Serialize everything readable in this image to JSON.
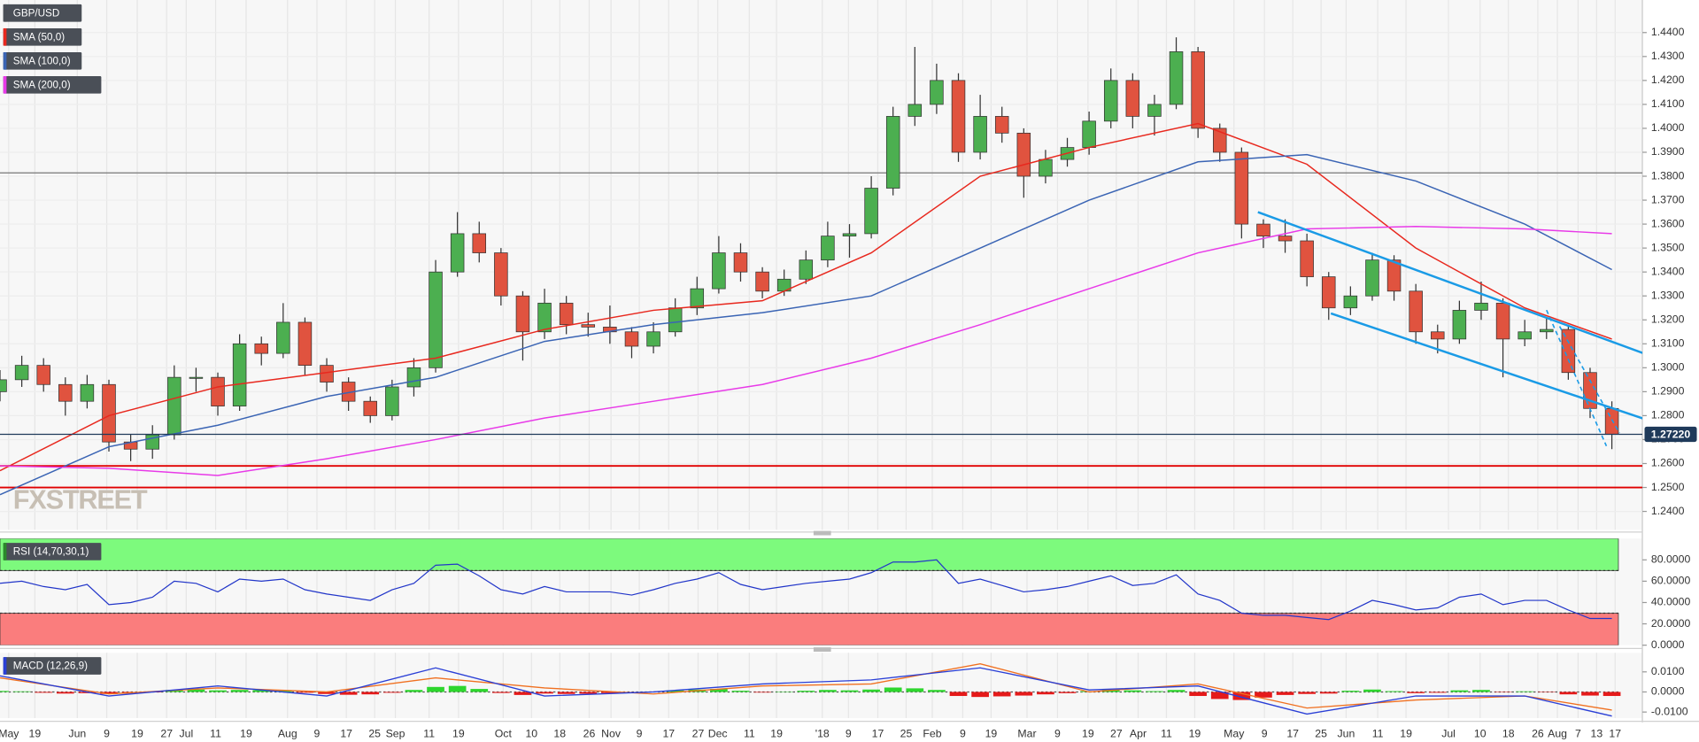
{
  "chart_data": {
    "type": "candlestick",
    "instrument": "GBP/USD",
    "watermark": "FXSTREET",
    "up_color": "#4caf50",
    "down_color": "#e0533f",
    "candles": [
      [
        1.29,
        1.299,
        1.286,
        1.295
      ],
      [
        1.295,
        1.305,
        1.292,
        1.301
      ],
      [
        1.301,
        1.304,
        1.29,
        1.293
      ],
      [
        1.293,
        1.296,
        1.28,
        1.286
      ],
      [
        1.286,
        1.297,
        1.283,
        1.293
      ],
      [
        1.293,
        1.295,
        1.265,
        1.269
      ],
      [
        1.269,
        1.272,
        1.261,
        1.266
      ],
      [
        1.266,
        1.276,
        1.262,
        1.272
      ],
      [
        1.272,
        1.301,
        1.27,
        1.296
      ],
      [
        1.296,
        1.3,
        1.29,
        1.296
      ],
      [
        1.296,
        1.298,
        1.28,
        1.284
      ],
      [
        1.284,
        1.314,
        1.282,
        1.31
      ],
      [
        1.31,
        1.313,
        1.301,
        1.306
      ],
      [
        1.306,
        1.327,
        1.304,
        1.319
      ],
      [
        1.319,
        1.321,
        1.297,
        1.301
      ],
      [
        1.301,
        1.304,
        1.29,
        1.294
      ],
      [
        1.294,
        1.296,
        1.282,
        1.286
      ],
      [
        1.286,
        1.288,
        1.277,
        1.28
      ],
      [
        1.28,
        1.295,
        1.278,
        1.292
      ],
      [
        1.292,
        1.304,
        1.288,
        1.3
      ],
      [
        1.3,
        1.345,
        1.298,
        1.34
      ],
      [
        1.34,
        1.365,
        1.338,
        1.356
      ],
      [
        1.356,
        1.361,
        1.344,
        1.348
      ],
      [
        1.348,
        1.35,
        1.326,
        1.33
      ],
      [
        1.33,
        1.332,
        1.303,
        1.315
      ],
      [
        1.315,
        1.333,
        1.312,
        1.327
      ],
      [
        1.327,
        1.33,
        1.314,
        1.318
      ],
      [
        1.318,
        1.323,
        1.313,
        1.317
      ],
      [
        1.317,
        1.326,
        1.31,
        1.315
      ],
      [
        1.315,
        1.317,
        1.304,
        1.309
      ],
      [
        1.309,
        1.319,
        1.306,
        1.315
      ],
      [
        1.315,
        1.329,
        1.313,
        1.325
      ],
      [
        1.325,
        1.338,
        1.322,
        1.333
      ],
      [
        1.333,
        1.355,
        1.331,
        1.348
      ],
      [
        1.348,
        1.352,
        1.336,
        1.34
      ],
      [
        1.34,
        1.342,
        1.329,
        1.332
      ],
      [
        1.332,
        1.341,
        1.33,
        1.337
      ],
      [
        1.337,
        1.349,
        1.335,
        1.345
      ],
      [
        1.345,
        1.361,
        1.342,
        1.355
      ],
      [
        1.355,
        1.36,
        1.346,
        1.356
      ],
      [
        1.356,
        1.38,
        1.354,
        1.375
      ],
      [
        1.375,
        1.409,
        1.372,
        1.405
      ],
      [
        1.405,
        1.434,
        1.401,
        1.41
      ],
      [
        1.41,
        1.427,
        1.406,
        1.42
      ],
      [
        1.42,
        1.423,
        1.386,
        1.39
      ],
      [
        1.39,
        1.414,
        1.387,
        1.405
      ],
      [
        1.405,
        1.409,
        1.394,
        1.398
      ],
      [
        1.398,
        1.4,
        1.371,
        1.38
      ],
      [
        1.38,
        1.391,
        1.377,
        1.387
      ],
      [
        1.387,
        1.396,
        1.384,
        1.392
      ],
      [
        1.392,
        1.407,
        1.389,
        1.403
      ],
      [
        1.403,
        1.425,
        1.4,
        1.42
      ],
      [
        1.42,
        1.423,
        1.4,
        1.405
      ],
      [
        1.405,
        1.414,
        1.397,
        1.41
      ],
      [
        1.41,
        1.438,
        1.408,
        1.432
      ],
      [
        1.432,
        1.434,
        1.396,
        1.4
      ],
      [
        1.4,
        1.402,
        1.386,
        1.39
      ],
      [
        1.39,
        1.392,
        1.354,
        1.36
      ],
      [
        1.36,
        1.362,
        1.35,
        1.355
      ],
      [
        1.355,
        1.362,
        1.348,
        1.353
      ],
      [
        1.353,
        1.356,
        1.334,
        1.338
      ],
      [
        1.338,
        1.34,
        1.32,
        1.325
      ],
      [
        1.325,
        1.334,
        1.322,
        1.33
      ],
      [
        1.33,
        1.348,
        1.328,
        1.345
      ],
      [
        1.345,
        1.347,
        1.328,
        1.332
      ],
      [
        1.332,
        1.335,
        1.31,
        1.315
      ],
      [
        1.315,
        1.318,
        1.306,
        1.312
      ],
      [
        1.312,
        1.328,
        1.31,
        1.324
      ],
      [
        1.324,
        1.336,
        1.32,
        1.327
      ],
      [
        1.327,
        1.329,
        1.296,
        1.312
      ],
      [
        1.312,
        1.32,
        1.309,
        1.315
      ],
      [
        1.315,
        1.321,
        1.312,
        1.316
      ],
      [
        1.316,
        1.318,
        1.295,
        1.298
      ],
      [
        1.298,
        1.3,
        1.279,
        1.283
      ],
      [
        1.283,
        1.286,
        1.266,
        1.2722
      ]
    ],
    "xlim": [
      0,
      75.4
    ],
    "ylim": [
      1.2323,
      1.4536
    ],
    "yticks": [
      {
        "value": 1.24,
        "label": "1.2400"
      },
      {
        "value": 1.25,
        "label": "1.2500"
      },
      {
        "value": 1.26,
        "label": "1.2600"
      },
      {
        "value": 1.27,
        "label": "1.2700"
      },
      {
        "value": 1.28,
        "label": "1.2800"
      },
      {
        "value": 1.29,
        "label": "1.2900"
      },
      {
        "value": 1.3,
        "label": "1.3000"
      },
      {
        "value": 1.31,
        "label": "1.3100"
      },
      {
        "value": 1.32,
        "label": "1.3200"
      },
      {
        "value": 1.33,
        "label": "1.3300"
      },
      {
        "value": 1.34,
        "label": "1.3400"
      },
      {
        "value": 1.35,
        "label": "1.3500"
      },
      {
        "value": 1.36,
        "label": "1.3600"
      },
      {
        "value": 1.37,
        "label": "1.3700"
      },
      {
        "value": 1.38,
        "label": "1.3800"
      },
      {
        "value": 1.39,
        "label": "1.3900"
      },
      {
        "value": 1.4,
        "label": "1.4000"
      },
      {
        "value": 1.41,
        "label": "1.4100"
      },
      {
        "value": 1.42,
        "label": "1.4200"
      },
      {
        "value": 1.43,
        "label": "1.4300"
      },
      {
        "value": 1.44,
        "label": "1.4400"
      }
    ],
    "xticks": [
      {
        "value": 0.4,
        "label": "May"
      },
      {
        "value": 1.6,
        "label": "19"
      },
      {
        "value": 3.55,
        "label": "Jun"
      },
      {
        "value": 4.9,
        "label": "9"
      },
      {
        "value": 6.3,
        "label": "19"
      },
      {
        "value": 7.65,
        "label": "27"
      },
      {
        "value": 8.55,
        "label": "Jul"
      },
      {
        "value": 9.9,
        "label": "11"
      },
      {
        "value": 11.3,
        "label": "19"
      },
      {
        "value": 13.2,
        "label": "Aug"
      },
      {
        "value": 14.55,
        "label": "9"
      },
      {
        "value": 15.9,
        "label": "17"
      },
      {
        "value": 17.2,
        "label": "25"
      },
      {
        "value": 18.15,
        "label": "Sep"
      },
      {
        "value": 19.7,
        "label": "11"
      },
      {
        "value": 21.05,
        "label": "19"
      },
      {
        "value": 23.1,
        "label": "Oct"
      },
      {
        "value": 24.4,
        "label": "10"
      },
      {
        "value": 25.7,
        "label": "18"
      },
      {
        "value": 27.05,
        "label": "26"
      },
      {
        "value": 28.05,
        "label": "Nov"
      },
      {
        "value": 29.35,
        "label": "9"
      },
      {
        "value": 30.7,
        "label": "17"
      },
      {
        "value": 32.05,
        "label": "27"
      },
      {
        "value": 32.95,
        "label": "Dec"
      },
      {
        "value": 34.4,
        "label": "11"
      },
      {
        "value": 35.65,
        "label": "19"
      },
      {
        "value": 37.75,
        "label": "'18"
      },
      {
        "value": 38.95,
        "label": "9"
      },
      {
        "value": 40.3,
        "label": "17"
      },
      {
        "value": 41.6,
        "label": "25"
      },
      {
        "value": 42.8,
        "label": "Feb"
      },
      {
        "value": 44.2,
        "label": "9"
      },
      {
        "value": 45.5,
        "label": "19"
      },
      {
        "value": 47.15,
        "label": "Mar"
      },
      {
        "value": 48.55,
        "label": "9"
      },
      {
        "value": 49.95,
        "label": "19"
      },
      {
        "value": 51.25,
        "label": "27"
      },
      {
        "value": 52.25,
        "label": "Apr"
      },
      {
        "value": 53.55,
        "label": "11"
      },
      {
        "value": 54.85,
        "label": "19"
      },
      {
        "value": 56.65,
        "label": "May"
      },
      {
        "value": 58.05,
        "label": "9"
      },
      {
        "value": 59.35,
        "label": "17"
      },
      {
        "value": 60.65,
        "label": "25"
      },
      {
        "value": 61.8,
        "label": "Jun"
      },
      {
        "value": 63.25,
        "label": "11"
      },
      {
        "value": 64.55,
        "label": "19"
      },
      {
        "value": 66.5,
        "label": "Jul"
      },
      {
        "value": 67.95,
        "label": "10"
      },
      {
        "value": 69.25,
        "label": "18"
      },
      {
        "value": 70.6,
        "label": "26"
      },
      {
        "value": 71.5,
        "label": "Aug"
      },
      {
        "value": 72.45,
        "label": "7"
      },
      {
        "value": 73.3,
        "label": "13"
      },
      {
        "value": 74.15,
        "label": "17"
      }
    ],
    "moving_averages": [
      {
        "name": "SMA (50,0)",
        "color": "#e8281e",
        "x": [
          0,
          5,
          10,
          15,
          20,
          25,
          30,
          35,
          40,
          45,
          50,
          55,
          60,
          65,
          70,
          74
        ],
        "values": [
          1.257,
          1.28,
          1.292,
          1.298,
          1.304,
          1.316,
          1.324,
          1.328,
          1.348,
          1.38,
          1.392,
          1.402,
          1.385,
          1.35,
          1.325,
          1.312
        ]
      },
      {
        "name": "SMA (100,0)",
        "color": "#3a64b4",
        "x": [
          0,
          5,
          10,
          15,
          20,
          25,
          30,
          35,
          40,
          45,
          50,
          55,
          60,
          65,
          70,
          74
        ],
        "values": [
          1.247,
          1.267,
          1.276,
          1.288,
          1.296,
          1.311,
          1.318,
          1.323,
          1.33,
          1.35,
          1.37,
          1.386,
          1.389,
          1.378,
          1.36,
          1.341
        ]
      },
      {
        "name": "SMA (200,0)",
        "color": "#e83ae8",
        "x": [
          0,
          5,
          10,
          15,
          20,
          25,
          30,
          35,
          40,
          45,
          50,
          55,
          60,
          65,
          70,
          74
        ],
        "values": [
          1.259,
          1.258,
          1.255,
          1.262,
          1.27,
          1.279,
          1.286,
          1.293,
          1.304,
          1.318,
          1.333,
          1.348,
          1.358,
          1.359,
          1.358,
          1.356
        ]
      }
    ],
    "levels": [
      {
        "value": 1.259,
        "color": "#e00000"
      },
      {
        "value": 1.25,
        "color": "#e00000"
      },
      {
        "value": 1.3814,
        "color": "#777777"
      }
    ],
    "last_price": {
      "value": 1.2722,
      "label": "1.27220",
      "color": "#1f3a5a"
    },
    "trendlines": [
      {
        "x": [
          57.75,
          75.5
        ],
        "y": [
          1.365,
          1.3059
        ],
        "dashed": false,
        "color": "#1a9be6"
      },
      {
        "x": [
          61.1,
          75.5
        ],
        "y": [
          1.3227,
          1.2786
        ],
        "dashed": false,
        "color": "#1a9be6"
      },
      {
        "x": [
          71,
          73.75
        ],
        "y": [
          1.3241,
          1.2673
        ],
        "dashed": true,
        "color": "#1a9be6"
      },
      {
        "x": [
          71.6,
          74.35
        ],
        "y": [
          1.3173,
          1.2727
        ],
        "dashed": true,
        "color": "#1a9be6"
      }
    ],
    "indicators": [
      {
        "type": "rsi",
        "name": "RSI (14,70,30,1)",
        "color": "#2236c9",
        "ylim": [
          0,
          100
        ],
        "overbought": 70,
        "oversold": 30,
        "yticks": [
          {
            "value": 0,
            "label": "0.0000"
          },
          {
            "value": 20,
            "label": "20.0000"
          },
          {
            "value": 40,
            "label": "40.0000"
          },
          {
            "value": 60,
            "label": "60.0000"
          },
          {
            "value": 80,
            "label": "80.0000"
          }
        ],
        "values": [
          58,
          60,
          55,
          52,
          57,
          38,
          40,
          45,
          60,
          58,
          50,
          62,
          60,
          62,
          52,
          48,
          45,
          42,
          52,
          58,
          75,
          76,
          65,
          52,
          48,
          55,
          50,
          50,
          50,
          47,
          52,
          58,
          62,
          68,
          57,
          52,
          55,
          58,
          60,
          62,
          68,
          78,
          78,
          80,
          58,
          62,
          56,
          50,
          52,
          55,
          60,
          65,
          56,
          58,
          66,
          48,
          42,
          30,
          28,
          28,
          26,
          24,
          32,
          42,
          38,
          33,
          35,
          45,
          48,
          38,
          42,
          42,
          33,
          25,
          25
        ]
      },
      {
        "type": "macd",
        "name": "MACD (12,26,9)",
        "macd_color": "#2a3fd6",
        "signal_color": "#f07020",
        "up_color": "#2ed62e",
        "down_color": "#e51a1a",
        "ylim": [
          -0.013,
          0.0195
        ],
        "yticks": [
          {
            "value": -0.01,
            "label": "-0.0100"
          },
          {
            "value": 0,
            "label": "0.0000"
          },
          {
            "value": 0.01,
            "label": "0.0100"
          }
        ],
        "x": [
          0,
          5,
          10,
          15,
          20,
          25,
          30,
          35,
          40,
          45,
          50,
          55,
          60,
          65,
          70,
          74
        ],
        "macd": [
          0.008,
          -0.002,
          0.003,
          -0.002,
          0.012,
          -0.002,
          0.0,
          0.004,
          0.006,
          0.012,
          0.001,
          0.003,
          -0.011,
          -0.002,
          -0.002,
          -0.012
        ],
        "signal": [
          0.007,
          -0.001,
          0.002,
          0.0,
          0.007,
          0.002,
          -0.001,
          0.003,
          0.004,
          0.014,
          0.0,
          0.004,
          -0.008,
          -0.004,
          -0.002,
          -0.009
        ],
        "histogram": [
          0.0005,
          0.0003,
          -0.0004,
          -0.0008,
          -0.0006,
          -0.001,
          -0.0008,
          -0.0002,
          0.001,
          0.0012,
          0.0008,
          0.001,
          0.0009,
          0.0006,
          -0.0004,
          -0.001,
          -0.0014,
          -0.0012,
          -0.0004,
          0.001,
          0.0025,
          0.003,
          0.0015,
          -0.0005,
          -0.0015,
          -0.0008,
          -0.001,
          -0.0009,
          -0.0006,
          -0.0003,
          0.0002,
          0.0008,
          0.0012,
          0.0015,
          0.0006,
          -0.0003,
          0.0002,
          0.0006,
          0.001,
          0.0008,
          0.0012,
          0.0022,
          0.0018,
          0.001,
          -0.002,
          -0.0025,
          -0.0022,
          -0.0018,
          -0.0012,
          -0.0006,
          0.0004,
          0.0012,
          0.0008,
          0.0004,
          0.001,
          -0.002,
          -0.0035,
          -0.004,
          -0.0028,
          -0.0015,
          -0.001,
          -0.0008,
          0.0006,
          0.0012,
          0.0004,
          -0.0006,
          -0.0004,
          0.0008,
          0.001,
          -0.0002,
          0.0003,
          -0.0002,
          -0.0012,
          -0.0018,
          -0.002
        ]
      }
    ]
  }
}
